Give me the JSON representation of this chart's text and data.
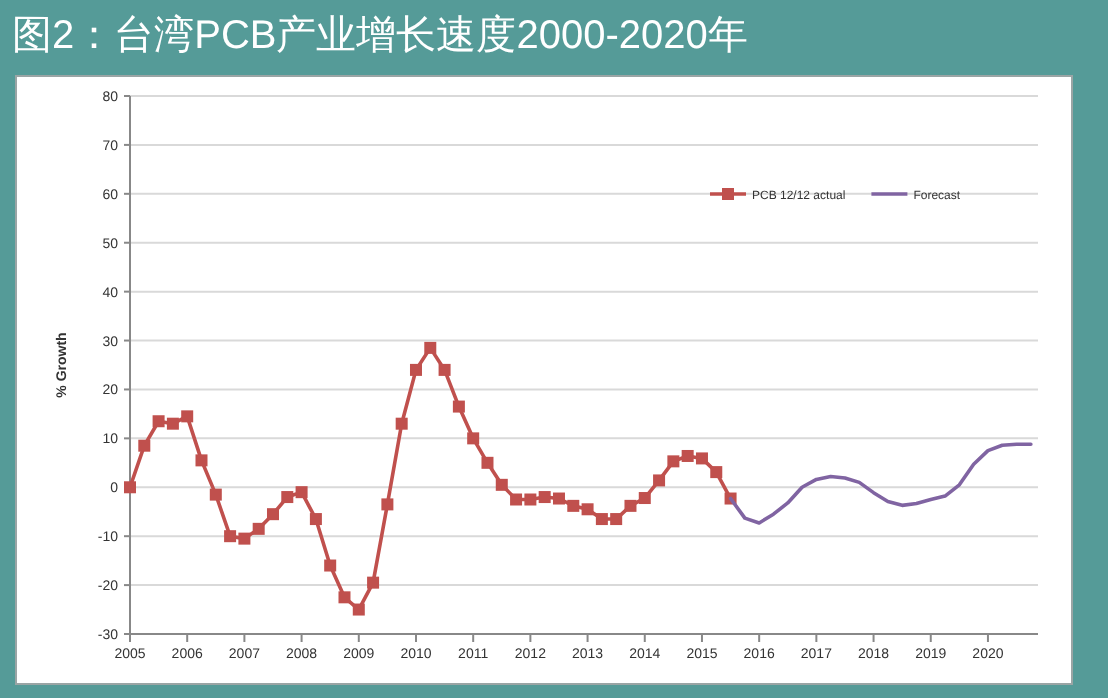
{
  "chart_data": {
    "type": "line",
    "title": "图2：台湾PCB产业增长速度2000-2020年",
    "ylabel": "% Growth",
    "xlim": [
      2005,
      2020.875
    ],
    "xticks": [
      2005,
      2006,
      2007,
      2008,
      2009,
      2010,
      2011,
      2012,
      2013,
      2014,
      2015,
      2016,
      2017,
      2018,
      2019,
      2020
    ],
    "ylim": [
      -30,
      80
    ],
    "yticks": [
      -30,
      -20,
      -10,
      0,
      10,
      20,
      30,
      40,
      50,
      60,
      70,
      80
    ],
    "grid": "y",
    "legend": "top right",
    "line_style": "solid",
    "series": [
      {
        "name": "PCB 12/12 actual",
        "color": "#c0504d",
        "marker": "square",
        "x": [
          2005,
          2005.25,
          2005.5,
          2005.75,
          2006,
          2006.25,
          2006.5,
          2006.75,
          2007,
          2007.25,
          2007.5,
          2007.75,
          2008,
          2008.25,
          2008.5,
          2008.75,
          2009,
          2009.25,
          2009.5,
          2009.75,
          2010,
          2010.25,
          2010.5,
          2010.75,
          2011,
          2011.25,
          2011.5,
          2011.75,
          2012,
          2012.25,
          2012.5,
          2012.75,
          2013,
          2013.25,
          2013.5,
          2013.75,
          2014,
          2014.25,
          2014.5,
          2014.75,
          2015,
          2015.25,
          2015.5
        ],
        "values": [
          0,
          8.5,
          13.5,
          13,
          14.5,
          5.5,
          -1.5,
          -10,
          -10.5,
          -8.5,
          -5.5,
          -2,
          -1,
          -6.5,
          -16,
          -22.5,
          -25,
          -19.5,
          -3.5,
          13,
          24,
          28.5,
          24,
          16.5,
          10,
          5,
          0.5,
          -2.5,
          -2.5,
          -2,
          -2.3,
          -3.8,
          -4.5,
          -6.5,
          -6.5,
          -3.8,
          -2.2,
          1.4,
          5.3,
          6.4,
          5.9,
          3.1,
          -2.3
        ]
      },
      {
        "name": "Forecast",
        "color": "#8064a2",
        "marker": "none",
        "x": [
          2015.5,
          2015.75,
          2016,
          2016.25,
          2016.5,
          2016.75,
          2017,
          2017.25,
          2017.5,
          2017.75,
          2018,
          2018.25,
          2018.5,
          2018.75,
          2019,
          2019.25,
          2019.5,
          2019.75,
          2020,
          2020.25,
          2020.5,
          2020.75
        ],
        "values": [
          -2.3,
          -6.3,
          -7.3,
          -5.5,
          -3.2,
          0,
          1.6,
          2.2,
          1.9,
          1,
          -1.1,
          -2.9,
          -3.7,
          -3.3,
          -2.5,
          -1.8,
          0.5,
          4.7,
          7.5,
          8.6,
          8.8,
          8.8
        ]
      }
    ]
  }
}
